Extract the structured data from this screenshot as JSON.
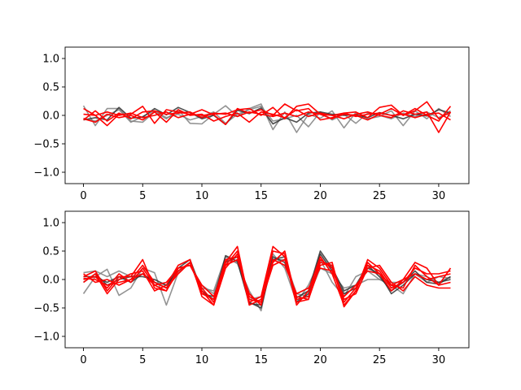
{
  "colors": {
    "gray": "#808080",
    "black": "#303030",
    "red": "#ff0000"
  },
  "chart_data": [
    {
      "type": "line",
      "title": "",
      "xlabel": "",
      "ylabel": "",
      "xlim": [
        -1.55,
        32.55
      ],
      "ylim": [
        -1.2,
        1.2
      ],
      "xticks": [
        0,
        5,
        10,
        15,
        20,
        25,
        30
      ],
      "yticks": [
        -1.0,
        -0.5,
        0.0,
        0.5,
        1.0
      ],
      "x": [
        0,
        1,
        2,
        3,
        4,
        5,
        6,
        7,
        8,
        9,
        10,
        11,
        12,
        13,
        14,
        15,
        16,
        17,
        18,
        19,
        20,
        21,
        22,
        23,
        24,
        25,
        26,
        27,
        28,
        29,
        30,
        31
      ],
      "series": [
        {
          "color": "gray",
          "values": [
            0.17,
            -0.18,
            0.12,
            0.12,
            -0.1,
            -0.12,
            0.06,
            -0.06,
            0.1,
            -0.14,
            -0.15,
            0.02,
            0.17,
            -0.02,
            0.12,
            0.2,
            -0.25,
            0.06,
            -0.3,
            0.02,
            -0.05,
            0.08,
            -0.22,
            0.05,
            -0.06,
            -0.02,
            0.08,
            -0.18,
            0.08,
            -0.06,
            0.12,
            -0.02
          ]
        },
        {
          "color": "gray",
          "values": [
            -0.05,
            -0.1,
            0.0,
            0.1,
            -0.12,
            -0.02,
            0.08,
            -0.04,
            0.02,
            -0.08,
            -0.02,
            0.06,
            -0.14,
            0.02,
            0.1,
            0.16,
            -0.1,
            -0.06,
            0.0,
            -0.2,
            0.06,
            -0.08,
            0.02,
            -0.14,
            0.04,
            0.0,
            -0.06,
            0.04,
            -0.02,
            0.06,
            -0.04,
            0.08
          ]
        },
        {
          "color": "black",
          "values": [
            -0.08,
            -0.04,
            -0.08,
            0.14,
            -0.05,
            -0.03,
            0.12,
            0.01,
            0.14,
            0.05,
            -0.06,
            0.0,
            -0.16,
            0.09,
            0.03,
            0.13,
            -0.15,
            -0.04,
            -0.12,
            0.04,
            0.06,
            0.02,
            0.0,
            0.01,
            -0.04,
            0.05,
            0.0,
            -0.06,
            0.02,
            -0.01,
            0.1,
            0.04
          ]
        },
        {
          "color": "red",
          "values": [
            0.12,
            0.0,
            -0.18,
            0.02,
            0.02,
            0.16,
            -0.14,
            0.1,
            0.06,
            0.02,
            0.1,
            0.01,
            -0.16,
            0.12,
            0.04,
            0.1,
            0.0,
            0.2,
            0.08,
            0.12,
            -0.08,
            -0.04,
            0.02,
            0.0,
            -0.08,
            0.02,
            0.12,
            0.0,
            0.08,
            0.24,
            -0.06,
            0.06
          ]
        },
        {
          "color": "red",
          "values": [
            -0.08,
            0.08,
            -0.1,
            0.04,
            -0.06,
            0.06,
            0.08,
            0.02,
            0.04,
            0.06,
            -0.04,
            0.04,
            0.02,
            0.1,
            0.12,
            0.0,
            0.14,
            -0.06,
            0.16,
            0.2,
            0.02,
            -0.06,
            0.04,
            0.06,
            -0.04,
            0.14,
            0.18,
            0.0,
            0.12,
            0.0,
            -0.1,
            0.16
          ]
        },
        {
          "color": "red",
          "values": [
            -0.06,
            -0.12,
            0.02,
            -0.04,
            0.0,
            -0.08,
            0.06,
            -0.12,
            0.1,
            0.0,
            0.02,
            -0.1,
            -0.02,
            0.04,
            -0.12,
            0.06,
            0.02,
            -0.04,
            0.1,
            -0.02,
            0.04,
            0.0,
            -0.06,
            0.02,
            0.06,
            0.0,
            -0.04,
            0.08,
            0.02,
            0.06,
            -0.3,
            0.06
          ]
        },
        {
          "color": "red",
          "values": [
            0.02,
            0.0,
            0.06,
            0.0,
            0.04,
            -0.04,
            0.0,
            0.06,
            -0.04,
            0.02,
            0.0,
            0.02,
            0.04,
            -0.02,
            0.06,
            0.02,
            -0.02,
            0.04,
            -0.02,
            0.06,
            0.02,
            0.0,
            0.04,
            -0.02,
            0.02,
            0.04,
            0.0,
            0.02,
            -0.04,
            0.02,
            0.04,
            -0.08
          ]
        }
      ]
    },
    {
      "type": "line",
      "title": "",
      "xlabel": "",
      "ylabel": "",
      "xlim": [
        -1.55,
        32.55
      ],
      "ylim": [
        -1.2,
        1.2
      ],
      "xticks": [
        0,
        5,
        10,
        15,
        20,
        25,
        30
      ],
      "yticks": [
        -1.0,
        -0.5,
        0.0,
        0.5,
        1.0
      ],
      "x": [
        0,
        1,
        2,
        3,
        4,
        5,
        6,
        7,
        8,
        9,
        10,
        11,
        12,
        13,
        14,
        15,
        16,
        17,
        18,
        19,
        20,
        21,
        22,
        23,
        24,
        25,
        26,
        27,
        28,
        29,
        30,
        31
      ],
      "series": [
        {
          "color": "gray",
          "values": [
            -0.25,
            0.05,
            0.18,
            -0.28,
            -0.15,
            0.2,
            0.12,
            -0.45,
            0.12,
            0.3,
            -0.15,
            -0.2,
            0.4,
            0.28,
            -0.2,
            -0.55,
            0.45,
            0.2,
            -0.4,
            -0.1,
            0.35,
            -0.05,
            -0.3,
            0.05,
            0.15,
            0.0,
            -0.1,
            -0.25,
            0.1,
            -0.05,
            0.05,
            0.02
          ]
        },
        {
          "color": "gray",
          "values": [
            0.12,
            0.15,
            0.05,
            0.15,
            0.05,
            0.1,
            -0.05,
            -0.1,
            0.2,
            0.25,
            -0.1,
            -0.25,
            0.35,
            0.3,
            -0.35,
            -0.3,
            0.35,
            0.35,
            -0.25,
            -0.3,
            0.2,
            0.1,
            -0.15,
            -0.1,
            0.0,
            0.0,
            -0.05,
            -0.05,
            0.1,
            0.05,
            -0.05,
            0.05
          ]
        },
        {
          "color": "black",
          "values": [
            0.05,
            0.05,
            -0.05,
            0.05,
            -0.05,
            0.1,
            -0.05,
            -0.15,
            0.2,
            0.35,
            -0.2,
            -0.35,
            0.42,
            0.32,
            -0.42,
            -0.45,
            0.4,
            0.3,
            -0.32,
            -0.2,
            0.5,
            0.2,
            -0.2,
            -0.1,
            0.25,
            0.05,
            -0.2,
            -0.05,
            0.15,
            -0.05,
            -0.08,
            0.05
          ]
        },
        {
          "color": "black",
          "values": [
            -0.05,
            0.1,
            -0.1,
            0.0,
            0.05,
            0.05,
            0.0,
            -0.1,
            0.15,
            0.3,
            -0.25,
            -0.3,
            0.3,
            0.4,
            -0.4,
            -0.5,
            0.35,
            0.4,
            -0.4,
            -0.25,
            0.45,
            0.15,
            -0.25,
            -0.15,
            0.2,
            0.1,
            -0.25,
            -0.1,
            0.1,
            0.0,
            -0.05,
            0.0
          ]
        },
        {
          "color": "red",
          "values": [
            0.05,
            0.15,
            -0.2,
            0.05,
            0.05,
            0.35,
            -0.15,
            -0.2,
            0.15,
            0.3,
            -0.2,
            -0.45,
            0.3,
            0.58,
            -0.4,
            -0.3,
            0.58,
            0.4,
            -0.45,
            -0.2,
            0.4,
            0.1,
            -0.45,
            -0.2,
            0.3,
            0.1,
            -0.2,
            0.0,
            0.3,
            0.2,
            -0.1,
            0.2
          ]
        },
        {
          "color": "red",
          "values": [
            0.0,
            0.05,
            -0.15,
            0.1,
            -0.05,
            0.2,
            -0.1,
            -0.2,
            0.2,
            0.25,
            -0.15,
            -0.4,
            0.25,
            0.5,
            -0.35,
            -0.4,
            0.5,
            0.45,
            -0.35,
            -0.3,
            0.35,
            0.2,
            -0.4,
            -0.15,
            0.25,
            0.15,
            -0.15,
            -0.05,
            0.2,
            0.1,
            0.1,
            0.15
          ]
        },
        {
          "color": "red",
          "values": [
            -0.05,
            0.1,
            -0.25,
            0.0,
            0.1,
            0.15,
            -0.2,
            -0.1,
            0.25,
            0.35,
            -0.3,
            -0.45,
            0.2,
            0.45,
            -0.45,
            -0.35,
            0.3,
            0.5,
            -0.4,
            -0.35,
            0.25,
            0.3,
            -0.48,
            -0.2,
            0.35,
            0.2,
            -0.1,
            -0.15,
            0.25,
            0.05,
            -0.1,
            -0.05
          ]
        },
        {
          "color": "red",
          "values": [
            0.02,
            0.0,
            -0.1,
            -0.05,
            0.0,
            0.25,
            -0.05,
            -0.15,
            0.1,
            0.3,
            -0.25,
            -0.35,
            0.35,
            0.4,
            -0.3,
            -0.4,
            0.25,
            0.35,
            -0.3,
            -0.35,
            0.3,
            0.25,
            -0.35,
            -0.25,
            0.2,
            0.25,
            -0.05,
            -0.2,
            0.05,
            -0.1,
            -0.15,
            -0.15
          ]
        },
        {
          "color": "red",
          "values": [
            0.1,
            -0.05,
            0.0,
            -0.1,
            0.0,
            0.1,
            -0.1,
            -0.05,
            0.2,
            0.25,
            -0.1,
            -0.3,
            0.25,
            0.35,
            -0.25,
            -0.45,
            0.35,
            0.25,
            -0.25,
            -0.15,
            0.2,
            0.15,
            -0.3,
            -0.1,
            0.15,
            0.1,
            -0.1,
            0.0,
            0.1,
            0.0,
            0.05,
            0.1
          ]
        }
      ]
    }
  ]
}
